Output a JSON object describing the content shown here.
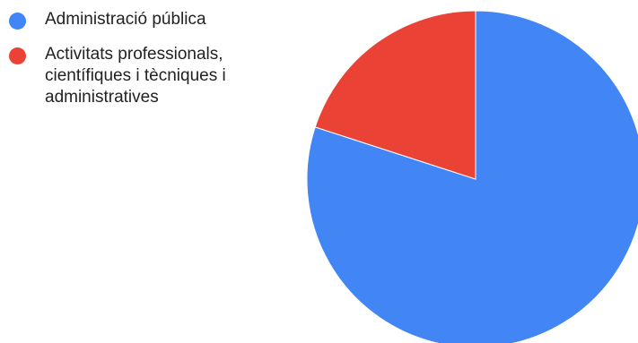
{
  "chart_data": {
    "type": "pie",
    "title": "",
    "legend_position": "top-left",
    "slices": [
      {
        "label": "Administració pública",
        "value": 80,
        "color": "#4285f4"
      },
      {
        "label": "Activitats professionals,\ncientífiques i tècniques i\nadministratives",
        "value": 20,
        "color": "#ea4335"
      }
    ]
  }
}
